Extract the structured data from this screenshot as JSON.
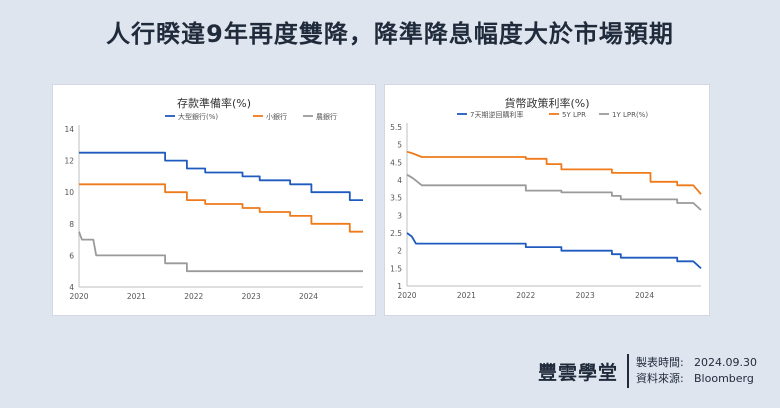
{
  "page_title": "人行睽違9年再度雙降，降準降息幅度大於市場預期",
  "footer": {
    "brand": "豐雲學堂",
    "date_label": "製表時間:",
    "date_value": "2024.09.30",
    "source_label": "資料來源:",
    "source_value": "Bloomberg"
  },
  "colors": {
    "blue": "#1f5bbf",
    "orange": "#ef7a1a",
    "gray": "#9a9a9a",
    "background": "#dfe5ef"
  },
  "chart_data": [
    {
      "type": "line",
      "title": "存款準備率(%)",
      "xlim": [
        2020,
        2024.95
      ],
      "ylim": [
        4,
        14
      ],
      "yticks": [
        4,
        6,
        8,
        10,
        12,
        14
      ],
      "xticks": [
        2020,
        2021,
        2022,
        2023,
        2024
      ],
      "grid": false,
      "legend_position": "top-right",
      "series": [
        {
          "name": "大型銀行(%)",
          "color": "#1f5bbf",
          "points": [
            [
              2020,
              12.5
            ],
            [
              2021.5,
              12.5
            ],
            [
              2021.5,
              12.0
            ],
            [
              2021.88,
              12.0
            ],
            [
              2021.88,
              11.5
            ],
            [
              2022.2,
              11.5
            ],
            [
              2022.2,
              11.25
            ],
            [
              2022.85,
              11.25
            ],
            [
              2022.85,
              11.0
            ],
            [
              2023.15,
              11.0
            ],
            [
              2023.15,
              10.75
            ],
            [
              2023.68,
              10.75
            ],
            [
              2023.68,
              10.5
            ],
            [
              2024.05,
              10.5
            ],
            [
              2024.05,
              10.0
            ],
            [
              2024.72,
              10.0
            ],
            [
              2024.72,
              9.5
            ],
            [
              2024.95,
              9.5
            ]
          ]
        },
        {
          "name": "小銀行",
          "color": "#ef7a1a",
          "points": [
            [
              2020,
              10.5
            ],
            [
              2021.5,
              10.5
            ],
            [
              2021.5,
              10.0
            ],
            [
              2021.88,
              10.0
            ],
            [
              2021.88,
              9.5
            ],
            [
              2022.2,
              9.5
            ],
            [
              2022.2,
              9.25
            ],
            [
              2022.85,
              9.25
            ],
            [
              2022.85,
              9.0
            ],
            [
              2023.15,
              9.0
            ],
            [
              2023.15,
              8.75
            ],
            [
              2023.68,
              8.75
            ],
            [
              2023.68,
              8.5
            ],
            [
              2024.05,
              8.5
            ],
            [
              2024.05,
              8.0
            ],
            [
              2024.72,
              8.0
            ],
            [
              2024.72,
              7.5
            ],
            [
              2024.95,
              7.5
            ]
          ]
        },
        {
          "name": "農銀行",
          "color": "#9a9a9a",
          "points": [
            [
              2020,
              7.5
            ],
            [
              2020.05,
              7.0
            ],
            [
              2020.25,
              7.0
            ],
            [
              2020.3,
              6.0
            ],
            [
              2021.5,
              6.0
            ],
            [
              2021.5,
              5.5
            ],
            [
              2021.88,
              5.5
            ],
            [
              2021.88,
              5.0
            ],
            [
              2024.95,
              5.0
            ]
          ]
        }
      ]
    },
    {
      "type": "line",
      "title": "貨幣政策利率(%)",
      "xlim": [
        2020,
        2024.95
      ],
      "ylim": [
        1,
        5.5
      ],
      "yticks": [
        1,
        1.5,
        2,
        2.5,
        3,
        3.5,
        4,
        4.5,
        5,
        5.5
      ],
      "xticks": [
        2020,
        2021,
        2022,
        2023,
        2024
      ],
      "grid": false,
      "legend_position": "top-right",
      "series": [
        {
          "name": "7天期逆回購利率",
          "color": "#1f5bbf",
          "points": [
            [
              2020,
              2.5
            ],
            [
              2020.08,
              2.4
            ],
            [
              2020.15,
              2.2
            ],
            [
              2022.0,
              2.2
            ],
            [
              2022.0,
              2.1
            ],
            [
              2022.6,
              2.1
            ],
            [
              2022.6,
              2.0
            ],
            [
              2023.45,
              2.0
            ],
            [
              2023.45,
              1.9
            ],
            [
              2023.6,
              1.9
            ],
            [
              2023.6,
              1.8
            ],
            [
              2024.55,
              1.8
            ],
            [
              2024.55,
              1.7
            ],
            [
              2024.82,
              1.7
            ],
            [
              2024.95,
              1.5
            ]
          ]
        },
        {
          "name": "5Y LPR",
          "color": "#ef7a1a",
          "points": [
            [
              2020,
              4.8
            ],
            [
              2020.1,
              4.75
            ],
            [
              2020.25,
              4.65
            ],
            [
              2022.0,
              4.65
            ],
            [
              2022.0,
              4.6
            ],
            [
              2022.35,
              4.6
            ],
            [
              2022.35,
              4.45
            ],
            [
              2022.6,
              4.45
            ],
            [
              2022.6,
              4.3
            ],
            [
              2023.45,
              4.3
            ],
            [
              2023.45,
              4.2
            ],
            [
              2024.1,
              4.2
            ],
            [
              2024.1,
              3.95
            ],
            [
              2024.55,
              3.95
            ],
            [
              2024.55,
              3.85
            ],
            [
              2024.82,
              3.85
            ],
            [
              2024.95,
              3.6
            ]
          ]
        },
        {
          "name": "1Y LPR(%)",
          "color": "#9a9a9a",
          "points": [
            [
              2020,
              4.15
            ],
            [
              2020.1,
              4.05
            ],
            [
              2020.25,
              3.85
            ],
            [
              2022.0,
              3.85
            ],
            [
              2022.0,
              3.7
            ],
            [
              2022.6,
              3.7
            ],
            [
              2022.6,
              3.65
            ],
            [
              2023.45,
              3.65
            ],
            [
              2023.45,
              3.55
            ],
            [
              2023.6,
              3.55
            ],
            [
              2023.6,
              3.45
            ],
            [
              2024.55,
              3.45
            ],
            [
              2024.55,
              3.35
            ],
            [
              2024.82,
              3.35
            ],
            [
              2024.95,
              3.15
            ]
          ]
        }
      ]
    }
  ]
}
